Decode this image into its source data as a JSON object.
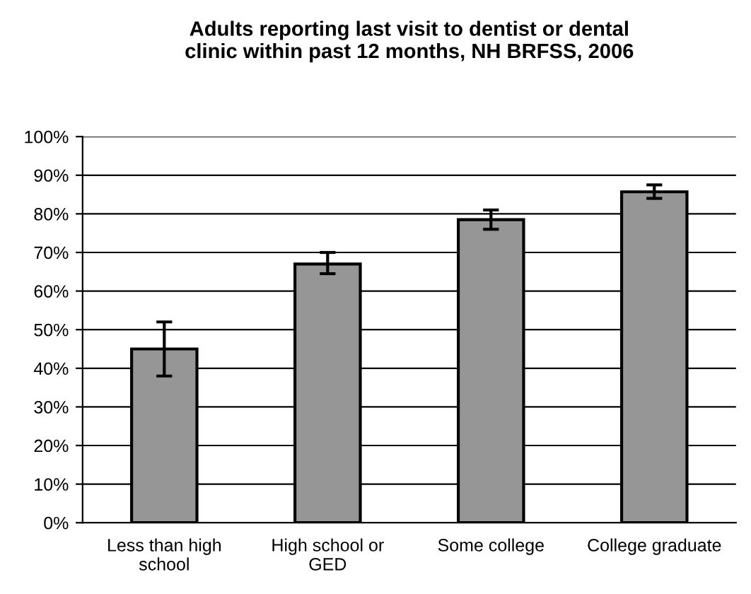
{
  "chart_data": {
    "type": "bar",
    "title": "Adults reporting last visit to dentist or dental\nclinic within past 12 months, NH BRFSS, 2006",
    "categories": [
      "Less than high\nschool",
      "High school or\nGED",
      "Some college",
      "College graduate"
    ],
    "values": [
      45,
      67,
      78.5,
      85.7
    ],
    "errors": [
      [
        38,
        52
      ],
      [
        64.5,
        70
      ],
      [
        76,
        81
      ],
      [
        84,
        87.5
      ]
    ],
    "color": "#969696",
    "ylim": [
      0,
      100
    ],
    "yticks": [
      {
        "value": 0,
        "label": "0%"
      },
      {
        "value": 10,
        "label": "10%"
      },
      {
        "value": 20,
        "label": "20%"
      },
      {
        "value": 30,
        "label": "30%"
      },
      {
        "value": 40,
        "label": "40%"
      },
      {
        "value": 50,
        "label": "50%"
      },
      {
        "value": 60,
        "label": "60%"
      },
      {
        "value": 70,
        "label": "70%"
      },
      {
        "value": 80,
        "label": "80%"
      },
      {
        "value": 90,
        "label": "90%"
      },
      {
        "value": 100,
        "label": "100%"
      }
    ],
    "grid": "y"
  }
}
